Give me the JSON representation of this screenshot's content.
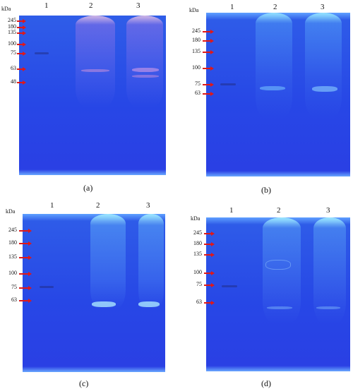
{
  "unit_label": "kDa",
  "lane_numbers": [
    "1",
    "2",
    "3"
  ],
  "panels": [
    {
      "caption": "(a)",
      "markers": [
        "245",
        "180",
        "135",
        "100",
        "75",
        "63",
        "48"
      ]
    },
    {
      "caption": "(b)",
      "markers": [
        "245",
        "180",
        "135",
        "100",
        "75",
        "63"
      ]
    },
    {
      "caption": "(c)",
      "markers": [
        "245",
        "180",
        "135",
        "100",
        "75",
        "63"
      ]
    },
    {
      "caption": "(d)",
      "markers": [
        "245",
        "180",
        "135",
        "100",
        "75",
        "63"
      ]
    }
  ],
  "colors": {
    "gel": "#2747e6",
    "marker_arrow": "#e01818"
  }
}
